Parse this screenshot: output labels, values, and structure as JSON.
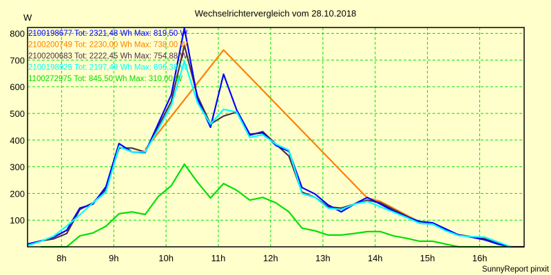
{
  "chart_data": {
    "type": "line",
    "title": "Wechselrichtervergleich vom 28.10.2018",
    "ylabel": "W",
    "xlabel": "",
    "footer": "SunnyReport pinxit",
    "xlim": [
      7.35,
      16.85
    ],
    "ylim": [
      0,
      822
    ],
    "grid": true,
    "legend_placement": "top-left",
    "x_ticks": [
      {
        "v": 8,
        "label": "8h"
      },
      {
        "v": 9,
        "label": "9h"
      },
      {
        "v": 10,
        "label": "10h"
      },
      {
        "v": 11,
        "label": "11h"
      },
      {
        "v": 12,
        "label": "12h"
      },
      {
        "v": 13,
        "label": "13h"
      },
      {
        "v": 14,
        "label": "14h"
      },
      {
        "v": 15,
        "label": "15h"
      },
      {
        "v": 16,
        "label": "16h"
      }
    ],
    "y_ticks": [
      {
        "v": 100,
        "label": "100"
      },
      {
        "v": 200,
        "label": "200"
      },
      {
        "v": 300,
        "label": "300"
      },
      {
        "v": 400,
        "label": "400"
      },
      {
        "v": 500,
        "label": "500"
      },
      {
        "v": 600,
        "label": "600"
      },
      {
        "v": 700,
        "label": "700"
      },
      {
        "v": 800,
        "label": "800"
      }
    ],
    "x": [
      7.35,
      7.6,
      7.85,
      8.1,
      8.35,
      8.6,
      8.85,
      9.1,
      9.35,
      9.6,
      9.85,
      10.1,
      10.35,
      10.6,
      10.85,
      11.1,
      11.35,
      11.6,
      11.85,
      12.1,
      12.35,
      12.6,
      12.85,
      13.1,
      13.35,
      13.6,
      13.85,
      14.1,
      14.35,
      14.6,
      14.85,
      15.1,
      15.35,
      15.6,
      15.85,
      16.1,
      16.35,
      16.6,
      16.85
    ],
    "series": [
      {
        "name": "1100272975",
        "legend": "1100272975 Tot: 845,50 Wh Max: 310,00 W",
        "color": "#00e000",
        "values": [
          null,
          0,
          0,
          0,
          41,
          52,
          77,
          124,
          131,
          121,
          188,
          229,
          310,
          242,
          183,
          237,
          212,
          175,
          185,
          165,
          131,
          70,
          60,
          44,
          44,
          50,
          57,
          57,
          41,
          32,
          21,
          21,
          10,
          0,
          0,
          0,
          0,
          0,
          null
        ]
      },
      {
        "name": "2100200749",
        "legend": "2100200749 Tot: 2230,00 Wh Max: 738,00 W",
        "color": "#ff7f00",
        "values": [
          null,
          null,
          null,
          null,
          null,
          null,
          null,
          null,
          null,
          365,
          null,
          null,
          null,
          null,
          null,
          738,
          null,
          null,
          null,
          null,
          null,
          null,
          null,
          null,
          null,
          null,
          183,
          170,
          null,
          null,
          93,
          null,
          null,
          null,
          null,
          null,
          null,
          null,
          null
        ]
      },
      {
        "name": "2100200683",
        "legend": "2100200683 Tot: 2222,45 Wh Max: 754,88 W",
        "color": "#4b3048",
        "values": [
          8,
          22,
          30,
          50,
          140,
          165,
          215,
          370,
          370,
          355,
          450,
          545,
          755,
          565,
          460,
          490,
          505,
          418,
          432,
          385,
          340,
          205,
          185,
          150,
          145,
          160,
          175,
          165,
          140,
          115,
          88,
          85,
          62,
          45,
          38,
          30,
          12,
          0,
          0
        ]
      },
      {
        "name": "2100198677",
        "legend": "2100198677 Tot: 2321,48 Wh Max: 819,50 W",
        "color": "#0000ff",
        "values": [
          10,
          22,
          36,
          62,
          145,
          160,
          225,
          387,
          355,
          353,
          461,
          570,
          820,
          556,
          448,
          647,
          513,
          422,
          427,
          380,
          358,
          222,
          198,
          157,
          131,
          160,
          185,
          160,
          134,
          113,
          95,
          90,
          67,
          44,
          36,
          26,
          10,
          0,
          null
        ]
      },
      {
        "name": "2100198925",
        "legend": "2100198925 Tot: 2197,49 Wh Max: 696,38 W",
        "color": "#00ffff",
        "values": [
          5,
          20,
          40,
          78,
          120,
          165,
          205,
          375,
          355,
          355,
          440,
          530,
          696,
          540,
          460,
          515,
          505,
          410,
          420,
          385,
          362,
          200,
          185,
          145,
          140,
          160,
          170,
          150,
          130,
          110,
          88,
          85,
          60,
          42,
          38,
          36,
          18,
          0,
          null
        ]
      }
    ],
    "legend_order": [
      3,
      1,
      2,
      4,
      0
    ]
  }
}
